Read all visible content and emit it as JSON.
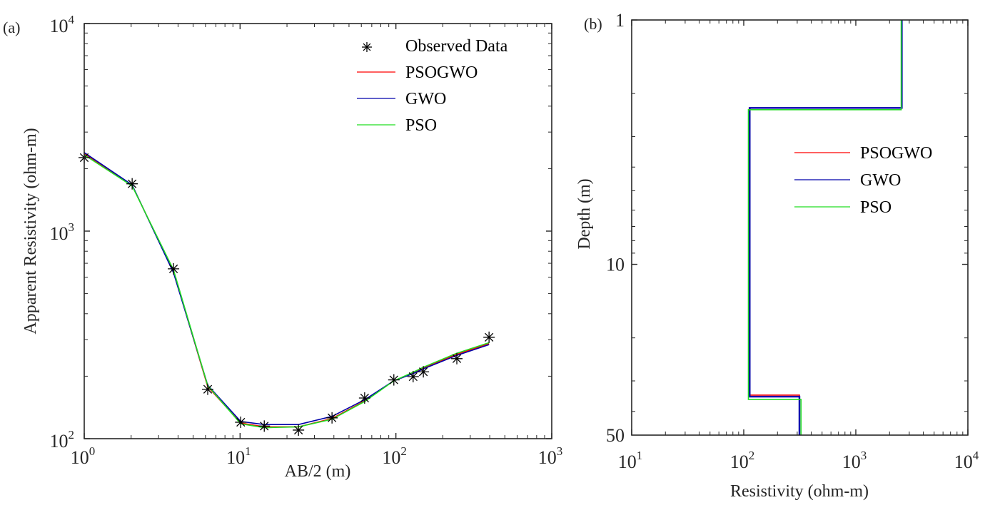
{
  "chart_data": [
    {
      "type": "line",
      "panel_label": "(a)",
      "title": "",
      "xlabel": "AB/2 (m)",
      "ylabel": "Apparent Resistivity (ohm-m)",
      "xscale": "log",
      "yscale": "log",
      "xlim": [
        1,
        1000
      ],
      "ylim": [
        100,
        10000
      ],
      "xticks": [
        {
          "base": "10",
          "exp": "0",
          "value": 1
        },
        {
          "base": "10",
          "exp": "1",
          "value": 10
        },
        {
          "base": "10",
          "exp": "2",
          "value": 100
        },
        {
          "base": "10",
          "exp": "3",
          "value": 1000
        }
      ],
      "yticks": [
        {
          "base": "10",
          "exp": "2",
          "value": 100
        },
        {
          "base": "10",
          "exp": "3",
          "value": 1000
        },
        {
          "base": "10",
          "exp": "4",
          "value": 10000
        }
      ],
      "grid": false,
      "legend_position": "top-right",
      "observed": {
        "name": "Observed Data",
        "marker": "asterisk",
        "color": "#000000",
        "x": [
          1.0,
          2.03,
          3.74,
          6.2,
          10.1,
          14.3,
          23.7,
          38.9,
          63,
          97,
          129,
          150,
          246,
          396
        ],
        "y": [
          2260,
          1690,
          658,
          173,
          120,
          115,
          110,
          126,
          157,
          192,
          199,
          210,
          243,
          308
        ]
      },
      "series": [
        {
          "name": "PSOGWO",
          "color": "#ff0000",
          "x": [
            1.0,
            2.03,
            3.74,
            6.2,
            10.1,
            14.3,
            23.7,
            38.9,
            63,
            97,
            129,
            150,
            246,
            396
          ],
          "y": [
            2360,
            1660,
            640,
            178,
            119,
            114,
            114,
            125,
            152,
            190,
            207,
            219,
            255,
            287
          ]
        },
        {
          "name": "GWO",
          "color": "#0000aa",
          "x": [
            1.0,
            2.03,
            3.74,
            6.2,
            10.1,
            14.3,
            23.7,
            38.9,
            63,
            97,
            129,
            150,
            246,
            396
          ],
          "y": [
            2390,
            1670,
            630,
            181,
            121,
            117,
            117,
            128,
            154,
            190,
            206,
            217,
            252,
            284
          ]
        },
        {
          "name": "PSO",
          "color": "#22dd22",
          "x": [
            1.0,
            2.03,
            3.74,
            6.2,
            10.1,
            14.3,
            23.7,
            38.9,
            63,
            97,
            129,
            150,
            246,
            396
          ],
          "y": [
            2330,
            1650,
            650,
            180,
            118,
            113,
            114,
            124,
            151,
            190,
            209,
            221,
            258,
            290
          ]
        }
      ]
    },
    {
      "type": "line",
      "panel_label": "(b)",
      "title": "",
      "xlabel": "Resistivity (ohm-m)",
      "ylabel": "Depth (m)",
      "xscale": "log",
      "yscale": "log",
      "y_reversed": true,
      "xlim": [
        10,
        10000
      ],
      "ylim": [
        1,
        50
      ],
      "xticks": [
        {
          "base": "10",
          "exp": "1",
          "value": 10
        },
        {
          "base": "10",
          "exp": "2",
          "value": 100
        },
        {
          "base": "10",
          "exp": "3",
          "value": 1000
        },
        {
          "base": "10",
          "exp": "4",
          "value": 10000
        }
      ],
      "yticks": [
        {
          "label": "1",
          "value": 1
        },
        {
          "label": "10",
          "value": 10
        },
        {
          "label": "50",
          "value": 50
        }
      ],
      "grid": false,
      "legend_position": "center-right",
      "series": [
        {
          "name": "PSOGWO",
          "color": "#ff0000",
          "resistivity": [
            2570,
            112,
            314
          ],
          "depth": [
            1,
            2.29,
            34.3,
            50
          ]
        },
        {
          "name": "GWO",
          "color": "#0000aa",
          "resistivity": [
            2570,
            113,
            314
          ],
          "depth": [
            1,
            2.29,
            34.8,
            50
          ]
        },
        {
          "name": "PSO",
          "color": "#22dd22",
          "resistivity": [
            2540,
            110,
            324
          ],
          "depth": [
            1,
            2.33,
            35.7,
            50
          ]
        }
      ]
    }
  ]
}
